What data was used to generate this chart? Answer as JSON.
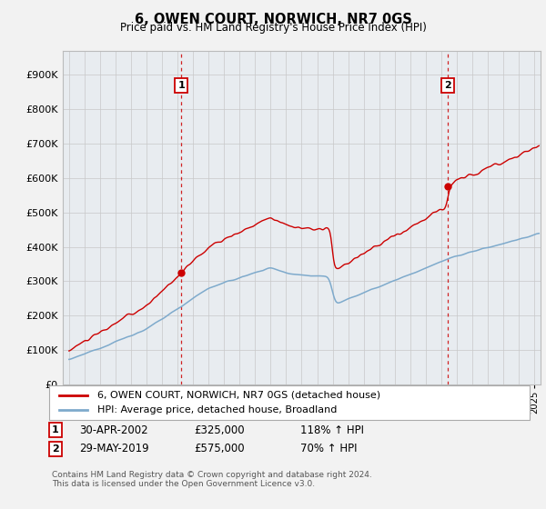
{
  "title": "6, OWEN COURT, NORWICH, NR7 0GS",
  "subtitle": "Price paid vs. HM Land Registry's House Price Index (HPI)",
  "ytick_vals": [
    0,
    100000,
    200000,
    300000,
    400000,
    500000,
    600000,
    700000,
    800000,
    900000
  ],
  "ylim": [
    0,
    970000
  ],
  "xlim": [
    1994.6,
    2025.4
  ],
  "sale1_date": 2002.25,
  "sale1_price": 325000,
  "sale2_date": 2019.42,
  "sale2_price": 575000,
  "legend_line1": "6, OWEN COURT, NORWICH, NR7 0GS (detached house)",
  "legend_line2": "HPI: Average price, detached house, Broadland",
  "hpi_color": "#7eaacc",
  "price_color": "#cc0000",
  "vline_color": "#cc0000",
  "background_color": "#f2f2f2",
  "plot_bg_color": "#e8ecf0"
}
